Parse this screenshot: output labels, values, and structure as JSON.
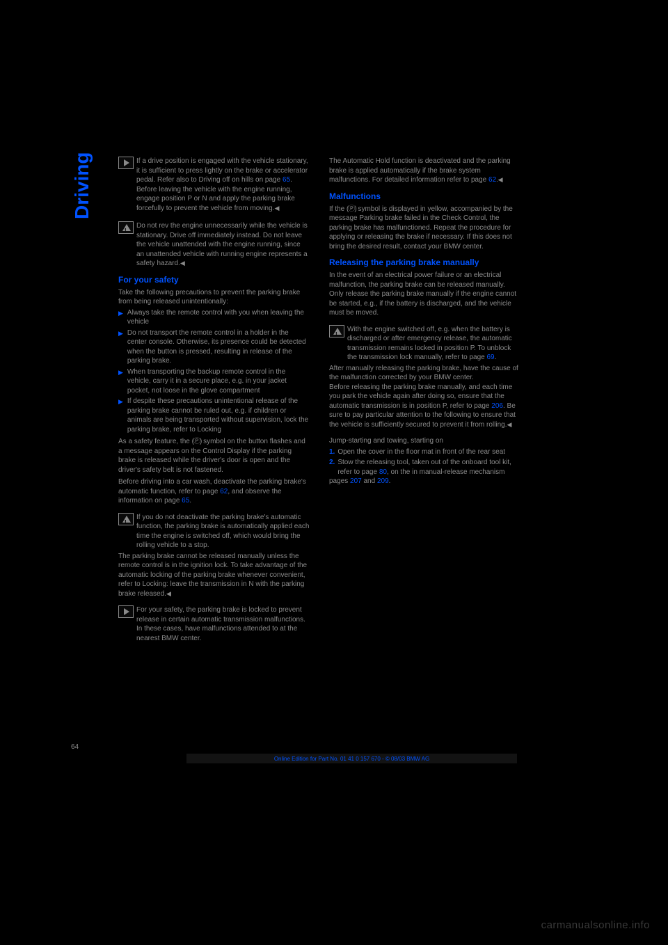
{
  "page": {
    "vertical_title": "Driving",
    "page_number": "64",
    "footer": "Online Edition for Part No. 01 41 0 157 670 - © 08/03 BMW AG",
    "watermark": "carmanualsonline.info"
  },
  "colors": {
    "link": "#0052ff",
    "text": "#8a8a8a",
    "background": "#000000"
  },
  "left_column": {
    "p1a": "If a drive position is engaged with the vehicle stationary, it is sufficient to press lightly on the brake or accelerator pedal. Refer also to Driving off on hills on page ",
    "p1a_link": "65",
    "p1b": "Before leaving the vehicle with the engine running, engage position P or N and apply the parking brake forcefully to prevent the vehicle from moving.",
    "p1b_end": "◀",
    "p2": "Do not rev the engine unnecessarily while the vehicle is stationary. Drive off immediately instead. Do not leave the vehicle unattended with the engine running, since an unattended vehicle with running engine represents a safety hazard.",
    "p2_end": "◀",
    "safety_header": "For your safety",
    "safety_intro": "Take the following precautions to prevent the parking brake from being released unintentionally:",
    "bullets": [
      "Always take the remote control with you when leaving the vehicle",
      "Do not transport the remote control in a holder in the center console. Otherwise, its presence could be detected when the button is pressed, resulting in release of the parking brake.",
      "When transporting the backup remote control in the vehicle, carry it in a secure place, e.g. in your jacket pocket, not loose in the glove compartment",
      "If despite these precautions unintentional release of the parking brake cannot be ruled out, e.g. if children or animals are being transported without supervision, lock the parking brake, refer to Locking"
    ],
    "p3a": "As a safety feature, the ",
    "p3b": " symbol on the button flashes and a message appears on the Control Display if the parking brake is released while the driver's door is open and the driver's safety belt is not fastened.",
    "p4a": "Before driving into a car wash, deactivate the parking brake's automatic function, refer to page ",
    "p4a_link": "62",
    "p4b": ", and observe the information on page ",
    "p4b_link": "65",
    "p4c": ".",
    "p5": "If you do not deactivate the parking brake's automatic function, the parking brake is automatically applied each time the engine is switched off, which would bring the rolling vehicle to a stop.",
    "p6": "The parking brake cannot be released manually unless the remote control is in the ignition lock. To take advantage of the automatic locking of the parking brake whenever convenient, refer to Locking: leave the transmission in N with the parking brake released.",
    "p6_end": "◀",
    "p7": "For your safety, the parking brake is locked to prevent release in certain automatic transmission malfunctions. In these cases, have malfunctions attended to at the nearest BMW center."
  },
  "right_column": {
    "p1a": "The Automatic Hold function is deactivated and the parking brake is applied automatically if the brake system malfunctions. For detailed information refer to page ",
    "p1a_link": "62",
    "p1a_end": ".◀",
    "malfunctions_header": "Malfunctions",
    "p2a": "If the ",
    "p2b": " symbol is displayed in yellow, accompanied by the message Parking brake failed in the Check Control, the parking brake has malfunctioned. Repeat the procedure for applying or releasing the brake if necessary. If this does not bring the desired result, contact your BMW center.",
    "release_header": "Releasing the parking brake manually",
    "p3": "In the event of an electrical power failure or an electrical malfunction, the parking brake can be released manually.",
    "p4": "Only release the parking brake manually if the engine cannot be started, e.g., if the battery is discharged, and the vehicle must be moved.",
    "p5a": "With the engine switched off, e.g. when the battery is discharged or after emergency release, the automatic transmission remains locked in position P. To unblock the transmission lock manually, refer to page ",
    "p5a_link": "69",
    "p5b": ".",
    "p6a": "After manually releasing the parking brake, have the cause of the malfunction corrected by your BMW center.",
    "p6b": "Before releasing the parking brake manually, and each time you park the vehicle again after doing so, ensure that the automatic transmission is in position P, refer to page ",
    "p6b_link": "206",
    "p6c": ". Be sure to pay particular attention to the following to ensure that the vehicle is sufficiently secured to prevent it from rolling.",
    "p6c_end": "◀",
    "jump_start_label": "Jump-starting and towing, starting on",
    "numbered": [
      {
        "n": "1.",
        "t": "Open the cover in the floor mat in front of the rear seat"
      },
      {
        "n": "2.",
        "ta": "Stow the releasing tool, taken out of the onboard tool kit, refer to page ",
        "link1": "80",
        "tb": ", on the in manual-release mechanism"
      }
    ],
    "jump_pages_a": "pages ",
    "jump_pages_link1": "207",
    "jump_pages_mid": " and ",
    "jump_pages_link2": "209",
    "jump_pages_b": "."
  }
}
